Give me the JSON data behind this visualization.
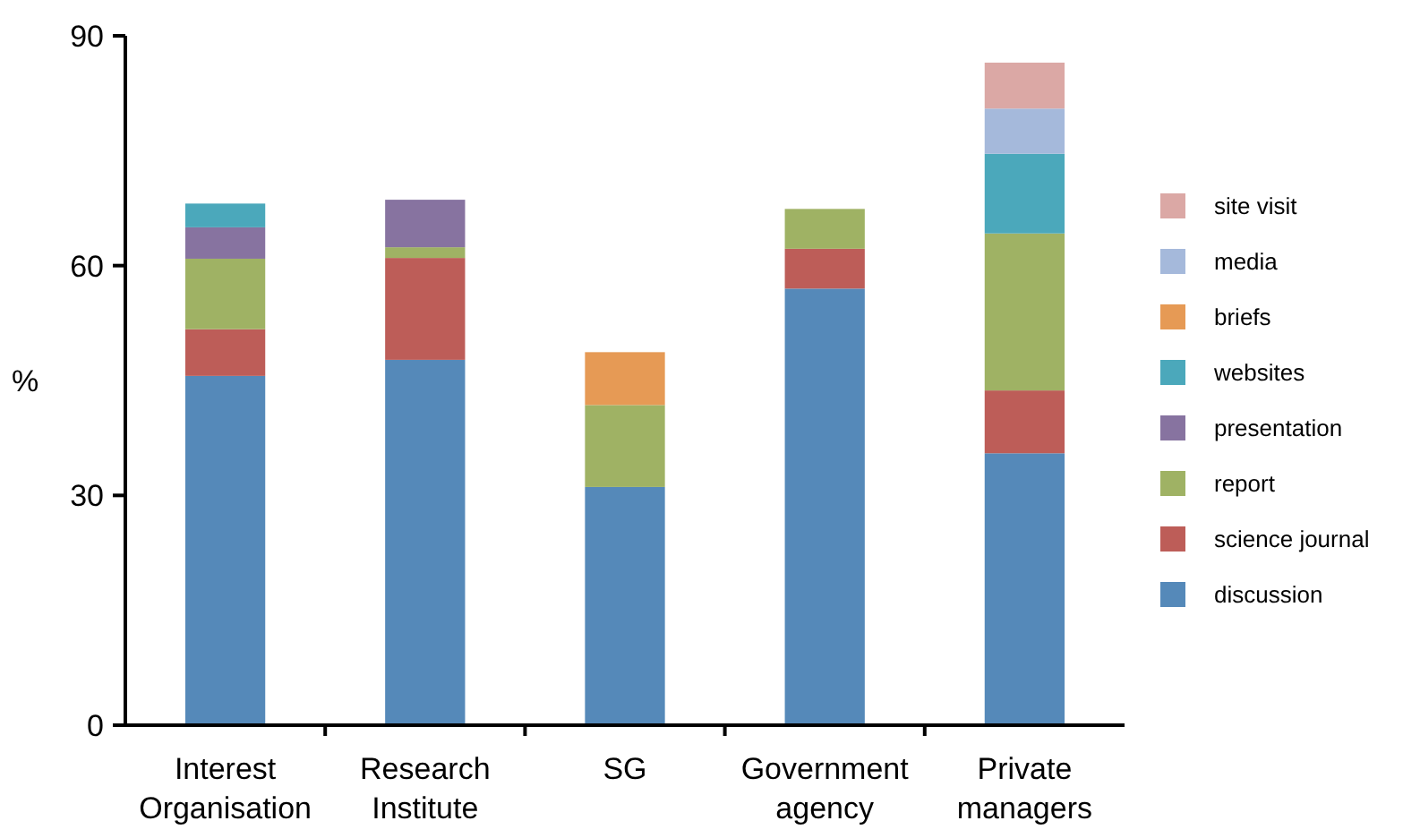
{
  "chart_data": {
    "type": "bar",
    "stacked": true,
    "ylabel": "%",
    "categories": [
      "Interest Organisation",
      "Research Institute",
      "SG",
      "Government agency",
      "Private managers"
    ],
    "ylim": [
      0,
      90
    ],
    "yticks": [
      0,
      30,
      60,
      90
    ],
    "legend": "right",
    "grid": false,
    "series": [
      {
        "name": "discussion",
        "color": "#5589b9",
        "values": [
          45.6,
          47.7,
          31.1,
          57.0,
          35.5
        ]
      },
      {
        "name": "science journal",
        "color": "#bd5d58",
        "values": [
          6.1,
          13.3,
          null,
          5.2,
          8.2
        ]
      },
      {
        "name": "report",
        "color": "#9fb264",
        "values": [
          9.2,
          1.4,
          10.7,
          5.2,
          20.5
        ]
      },
      {
        "name": "presentation",
        "color": "#8773a0",
        "values": [
          4.1,
          6.2,
          null,
          null,
          null
        ]
      },
      {
        "name": "websites",
        "color": "#4ba8bb",
        "values": [
          3.1,
          null,
          null,
          null,
          10.4
        ]
      },
      {
        "name": "briefs",
        "color": "#e69a55",
        "values": [
          null,
          null,
          6.9,
          null,
          null
        ]
      },
      {
        "name": "media",
        "color": "#a5b9db",
        "values": [
          null,
          null,
          null,
          null,
          5.9
        ]
      },
      {
        "name": "site visit",
        "color": "#dba8a5",
        "values": [
          null,
          null,
          null,
          null,
          6.0
        ]
      }
    ]
  }
}
